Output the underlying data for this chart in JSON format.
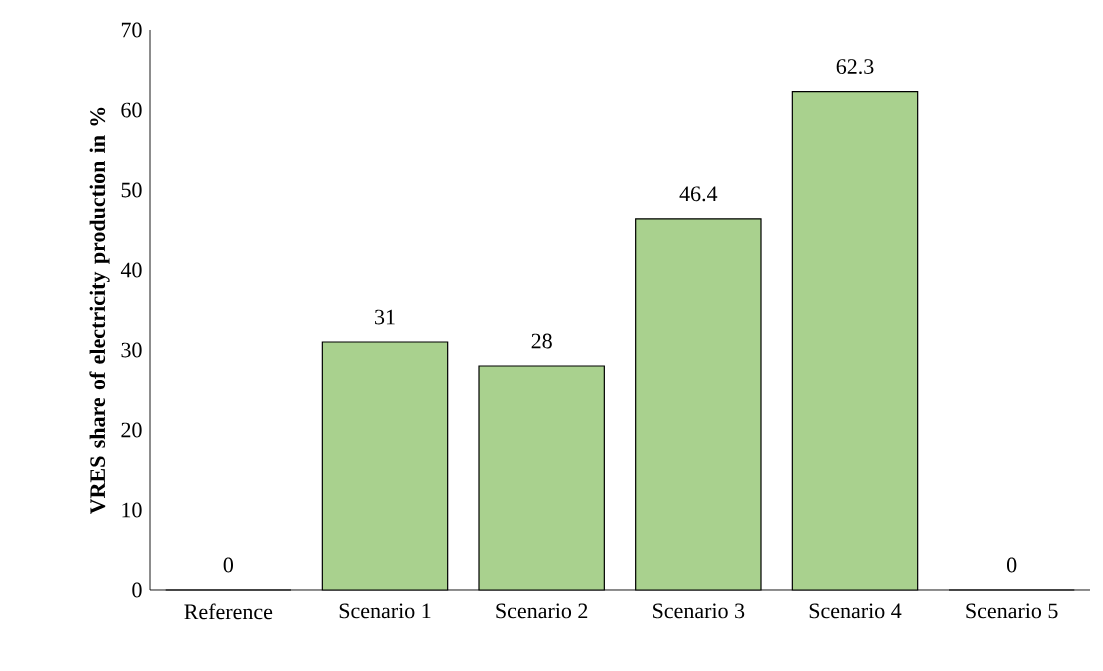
{
  "chart_data": {
    "type": "bar",
    "ylabel": "VRES share of electricity production in %",
    "categories": [
      "Reference",
      "Scenario 1",
      "Scenario 2",
      "Scenario 3",
      "Scenario 4",
      "Scenario 5"
    ],
    "values": [
      0,
      31,
      28,
      46.4,
      62.3,
      0
    ],
    "color": "#a9d18e",
    "ylim": [
      0,
      70
    ],
    "yticks": [
      0,
      10,
      20,
      30,
      40,
      50,
      60,
      70
    ],
    "data_labels": true
  }
}
